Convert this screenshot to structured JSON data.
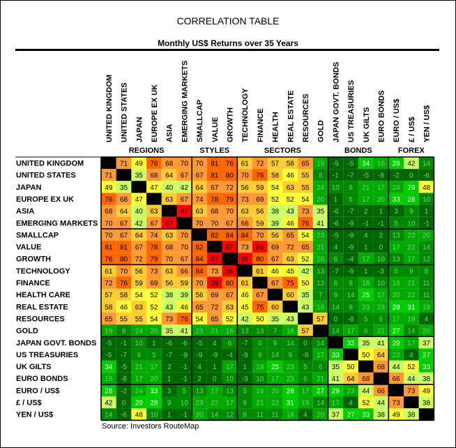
{
  "title": "CORRELATION TABLE",
  "subtitle": "Monthly US$ Returns over 35 Years",
  "source": "Source: Investors RouteMap",
  "chart_data": {
    "type": "heatmap",
    "labels": [
      "UNITED KINGDOM",
      "UNITED STATES",
      "JAPAN",
      "EUROPE EX UK",
      "ASIA",
      "EMERGING MARKETS",
      "SMALLCAP",
      "VALUE",
      "GROWTH",
      "TECHNOLOGY",
      "FINANCE",
      "HEALTH CARE",
      "REAL ESTATE",
      "RESOURCES",
      "GOLD",
      "JAPAN GOVT. BONDS",
      "US TREASURIES",
      "UK GILTS",
      "EURO BONDS",
      "EURO / US$",
      "£ / US$",
      "YEN / US$"
    ],
    "column_labels": [
      "UNITED KINGDOM",
      "UNITED STATES",
      "JAPAN",
      "EUROPE EX UK",
      "ASIA",
      "EMERGING MARKETS",
      "SMALLCAP",
      "VALUE",
      "GROWTH",
      "TECHNOLOGY",
      "FINANCE",
      "HEALTH",
      "REAL ESTATE",
      "RESOURCES",
      "GOLD",
      "JAPAN GOVT. BONDS",
      "US TREASURIES",
      "UK GILTS",
      "EURO BONDS",
      "EURO / US$",
      "£ / US$",
      "YEN / US$"
    ],
    "groups": [
      {
        "name": "REGIONS",
        "start": 0,
        "end": 5
      },
      {
        "name": "STYLES",
        "start": 6,
        "end": 8
      },
      {
        "name": "SECTORS",
        "start": 9,
        "end": 14
      },
      {
        "name": "BONDS",
        "start": 15,
        "end": 18
      },
      {
        "name": "FOREX",
        "start": 19,
        "end": 21
      }
    ],
    "values": [
      [
        null,
        71,
        49,
        76,
        68,
        70,
        70,
        81,
        76,
        61,
        72,
        57,
        58,
        65,
        19,
        -5,
        -5,
        34,
        16,
        28,
        42,
        14
      ],
      [
        71,
        null,
        35,
        68,
        64,
        67,
        67,
        81,
        80,
        70,
        76,
        58,
        46,
        55,
        8,
        -1,
        -7,
        -5,
        -8,
        -2,
        0,
        -6
      ],
      [
        49,
        35,
        null,
        47,
        40,
        42,
        64,
        67,
        72,
        56,
        59,
        54,
        63,
        55,
        24,
        10,
        9,
        21,
        17,
        24,
        29,
        48
      ],
      [
        76,
        68,
        47,
        null,
        63,
        67,
        74,
        78,
        79,
        73,
        69,
        52,
        52,
        54,
        20,
        1,
        5,
        17,
        20,
        33,
        28,
        10
      ],
      [
        68,
        64,
        40,
        63,
        null,
        87,
        63,
        68,
        70,
        63,
        56,
        38,
        43,
        73,
        35,
        -6,
        -7,
        2,
        1,
        3,
        9,
        1
      ],
      [
        70,
        67,
        42,
        67,
        87,
        null,
        70,
        70,
        67,
        66,
        59,
        39,
        46,
        76,
        41,
        -6,
        -9,
        -1,
        -1,
        5,
        10,
        -1
      ],
      [
        70,
        67,
        64,
        74,
        63,
        70,
        null,
        82,
        84,
        84,
        70,
        56,
        65,
        54,
        23,
        -5,
        -9,
        4,
        2,
        13,
        23,
        20
      ],
      [
        81,
        81,
        67,
        78,
        68,
        70,
        82,
        null,
        87,
        73,
        89,
        69,
        72,
        65,
        21,
        4,
        -9,
        1,
        0,
        17,
        22,
        14
      ],
      [
        76,
        80,
        72,
        79,
        70,
        67,
        84,
        87,
        null,
        86,
        80,
        67,
        63,
        52,
        16,
        6,
        -4,
        17,
        10,
        13,
        17,
        12
      ],
      [
        61,
        70,
        56,
        73,
        63,
        66,
        84,
        73,
        86,
        null,
        61,
        46,
        45,
        42,
        13,
        -7,
        -9,
        1,
        -3,
        5,
        9,
        8
      ],
      [
        72,
        76,
        59,
        69,
        56,
        59,
        70,
        89,
        80,
        61,
        null,
        67,
        75,
        50,
        13,
        6,
        9,
        18,
        10,
        16,
        21,
        11
      ],
      [
        57,
        58,
        54,
        52,
        38,
        39,
        56,
        69,
        67,
        46,
        67,
        null,
        60,
        35,
        7,
        9,
        14,
        25,
        17,
        20,
        22,
        11
      ],
      [
        58,
        46,
        63,
        52,
        43,
        46,
        65,
        72,
        63,
        45,
        75,
        60,
        null,
        43,
        18,
        14,
        9,
        23,
        23,
        28,
        31,
        18
      ],
      [
        65,
        55,
        55,
        54,
        73,
        76,
        54,
        65,
        52,
        42,
        50,
        35,
        43,
        null,
        57,
        0,
        -8,
        5,
        6,
        17,
        19,
        4
      ],
      [
        19,
        8,
        24,
        20,
        35,
        41,
        23,
        21,
        16,
        13,
        13,
        7,
        18,
        57,
        null,
        14,
        17,
        6,
        21,
        27,
        14,
        20
      ],
      [
        -5,
        -1,
        10,
        1,
        -6,
        -6,
        -5,
        4,
        6,
        -7,
        6,
        9,
        14,
        0,
        14,
        null,
        33,
        35,
        41,
        29,
        17,
        37
      ],
      [
        -5,
        -7,
        9,
        5,
        -7,
        -9,
        -9,
        -9,
        -4,
        -9,
        9,
        14,
        9,
        -8,
        17,
        33,
        null,
        50,
        64,
        23,
        4,
        27
      ],
      [
        34,
        -5,
        21,
        17,
        2,
        -1,
        4,
        1,
        17,
        1,
        18,
        25,
        23,
        5,
        6,
        35,
        50,
        null,
        68,
        44,
        52,
        33
      ],
      [
        16,
        -8,
        17,
        20,
        1,
        -1,
        2,
        0,
        10,
        -3,
        10,
        17,
        23,
        6,
        21,
        41,
        64,
        68,
        null,
        66,
        44,
        38
      ],
      [
        28,
        -2,
        24,
        33,
        3,
        5,
        13,
        17,
        13,
        5,
        16,
        20,
        28,
        17,
        27,
        29,
        23,
        44,
        66,
        null,
        73,
        49
      ],
      [
        42,
        0,
        29,
        28,
        9,
        10,
        23,
        22,
        17,
        9,
        21,
        22,
        31,
        19,
        14,
        17,
        4,
        52,
        44,
        73,
        null,
        38
      ],
      [
        14,
        -6,
        48,
        10,
        1,
        -1,
        20,
        14,
        12,
        8,
        11,
        11,
        18,
        4,
        20,
        37,
        27,
        33,
        38,
        49,
        38,
        null
      ]
    ],
    "color_scale": [
      {
        "min": 85,
        "color": "#ff0000"
      },
      {
        "min": 75,
        "color": "#ff6600"
      },
      {
        "min": 65,
        "color": "#ff9933"
      },
      {
        "min": 55,
        "color": "#ffcc33"
      },
      {
        "min": 45,
        "color": "#ffff33"
      },
      {
        "min": 35,
        "color": "#ccff66"
      },
      {
        "min": 25,
        "color": "#00cc00"
      },
      {
        "min": 15,
        "color": "#00aa00"
      },
      {
        "min": 5,
        "color": "#008800"
      },
      {
        "min": -100,
        "color": "#006600"
      }
    ],
    "diagonal_color": "#000000"
  }
}
